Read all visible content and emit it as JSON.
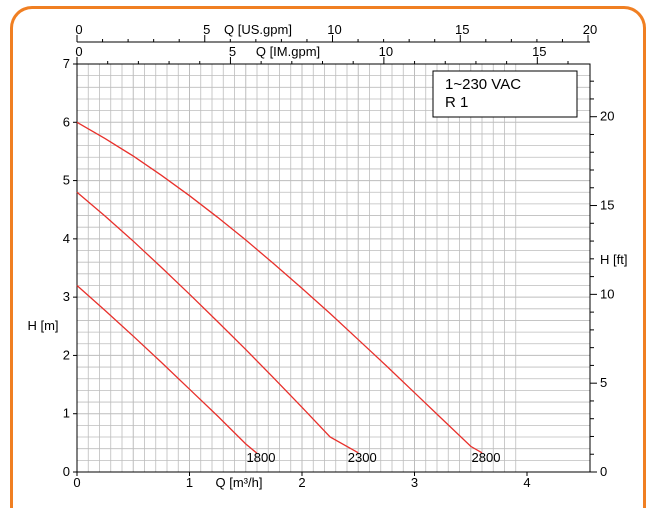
{
  "chart_data": {
    "type": "line",
    "x": [
      0,
      0.5,
      1,
      1.5,
      2,
      2.5,
      3,
      3.5
    ],
    "series": [
      {
        "name": "1800",
        "x": [
          0,
          0.25,
          0.5,
          0.75,
          1,
          1.25,
          1.5,
          1.6
        ],
        "values": [
          3.2,
          2.77,
          2.33,
          1.88,
          1.42,
          0.96,
          0.48,
          0.32
        ]
      },
      {
        "name": "2300",
        "x": [
          0,
          0.25,
          0.5,
          0.75,
          1,
          1.25,
          1.5,
          1.75,
          2,
          2.25,
          2.5
        ],
        "values": [
          4.8,
          4.39,
          3.96,
          3.51,
          3.05,
          2.58,
          2.1,
          1.61,
          1.11,
          0.6,
          0.33
        ]
      },
      {
        "name": "2800",
        "x": [
          0,
          0.25,
          0.5,
          0.75,
          1,
          1.25,
          1.5,
          1.75,
          2,
          2.25,
          2.5,
          2.75,
          3,
          3.25,
          3.5,
          3.6
        ],
        "values": [
          6.0,
          5.72,
          5.42,
          5.09,
          4.74,
          4.37,
          3.98,
          3.57,
          3.15,
          2.72,
          2.27,
          1.82,
          1.36,
          0.9,
          0.44,
          0.33
        ]
      }
    ],
    "xlabel": "Q [m³/h]",
    "ylabel": "H [m]",
    "xlim": [
      0,
      4.6
    ],
    "ylim": [
      0,
      7
    ],
    "x_ticks": [
      "0",
      "1",
      "2",
      "3",
      "4"
    ],
    "y_ticks": [
      "0",
      "1",
      "2",
      "3",
      "4",
      "5",
      "6",
      "7"
    ],
    "top_axis_1": {
      "label": "Q [US.gpm]",
      "ticks": [
        "0",
        "5",
        "10",
        "15",
        "20"
      ],
      "values": [
        0,
        5,
        10,
        15,
        20
      ],
      "per_m3h": 4.403
    },
    "top_axis_2": {
      "label": "Q [IM.gpm]",
      "ticks": [
        "0",
        "5",
        "10",
        "15"
      ],
      "values": [
        0,
        5,
        10,
        15
      ],
      "per_m3h": 3.666
    },
    "right_axis": {
      "label": "H [ft]",
      "ticks": [
        "0",
        "5",
        "10",
        "15",
        "20"
      ],
      "values": [
        0,
        5,
        10,
        15,
        20
      ],
      "per_m": 3.281
    },
    "legend": {
      "lines": [
        "1~230 VAC",
        "R 1"
      ],
      "position": "top-right"
    },
    "grid": true,
    "line_color": "#e8302b",
    "border_color": "#f07f22"
  }
}
